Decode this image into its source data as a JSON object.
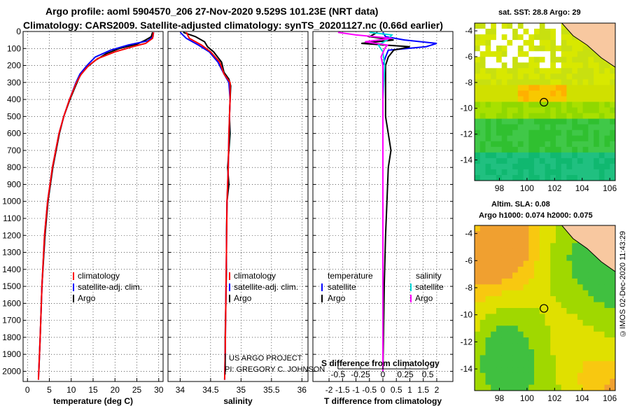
{
  "titles": {
    "line1": "Argo profile: aoml 5904570_206 27-Nov-2020 9.529S 101.23E (NRT data)",
    "line2": "Climatology: CARS2009. Satellite-adjusted climatology: synTS_20201127.nc (0.66d earlier)"
  },
  "maps": {
    "sst_title": "sat. SST: 28.8 Argo: 29",
    "sla_title1": "Altim. SLA: 0.08",
    "sla_title2": "Argo h1000: 0.074 h2000: 0.075",
    "yticks": [
      "-4",
      "-6",
      "-8",
      "-10",
      "-12",
      "-14"
    ],
    "xticks": [
      "98",
      "100",
      "102",
      "104",
      "106"
    ]
  },
  "credit": "©IMOS 02-Dec-2020 11:43:29",
  "project": {
    "line1": "US ARGO PROJECT",
    "line2": "PI: GREGORY C. JOHNSON"
  },
  "colors": {
    "climatology": "#ff0000",
    "satellite": "#0000ff",
    "argo": "#000000",
    "sat_salinity": "#00d8d8",
    "argo_salinity": "#ff00ff"
  },
  "chart_data": [
    {
      "type": "line",
      "xlabel": "temperature (deg C)",
      "xticks": [
        "0",
        "5",
        "10",
        "15",
        "20",
        "25",
        "30"
      ],
      "xlim": [
        -1,
        31
      ],
      "ylim": [
        0,
        2060
      ],
      "yticks": [
        "0",
        "100",
        "200",
        "300",
        "400",
        "500",
        "600",
        "700",
        "800",
        "900",
        "1000",
        "1100",
        "1200",
        "1300",
        "1400",
        "1500",
        "1600",
        "1700",
        "1800",
        "1900",
        "2000"
      ],
      "legend": [
        "climatology",
        "satellite-adj. clim.",
        "Argo"
      ],
      "series": [
        {
          "name": "climatology",
          "depth": [
            5,
            40,
            70,
            90,
            120,
            160,
            200,
            250,
            300,
            400,
            500,
            600,
            800,
            1000,
            1200,
            1500,
            1800,
            2050
          ],
          "values": [
            28.8,
            28.6,
            27,
            24,
            20,
            16,
            14,
            12.3,
            11.2,
            9.6,
            8.3,
            7.2,
            5.7,
            4.6,
            3.9,
            3.3,
            2.9,
            2.5
          ]
        },
        {
          "name": "satellite-adj. clim.",
          "depth": [
            5,
            30,
            55,
            80,
            110,
            150,
            200,
            250,
            300,
            400,
            500,
            600,
            800,
            1000,
            1200,
            1500,
            1800,
            2050
          ],
          "values": [
            28.8,
            28.7,
            27.5,
            23,
            19,
            15.5,
            13.6,
            12,
            11.1,
            9.6,
            8.3,
            7.2,
            5.7,
            4.6,
            3.9,
            3.3,
            2.9,
            2.5
          ]
        },
        {
          "name": "Argo",
          "depth": [
            5,
            30,
            50,
            75,
            100,
            130,
            170,
            210,
            260,
            320,
            400,
            500,
            600,
            800,
            1000,
            1200,
            1500,
            1800,
            2000
          ],
          "values": [
            28.6,
            28.3,
            27,
            25,
            21,
            18,
            15.5,
            13.6,
            12,
            11,
            9.7,
            8.3,
            7.3,
            5.8,
            4.7,
            4,
            3.3,
            2.9,
            2.6
          ]
        }
      ]
    },
    {
      "type": "line",
      "xlabel": "salinity",
      "xticks": [
        "34",
        "34.5",
        "35",
        "35.5",
        "36"
      ],
      "xlim": [
        33.8,
        36.1
      ],
      "ylim": [
        0,
        2060
      ],
      "legend": [
        "climatology",
        "satellite-adj. clim.",
        "Argo"
      ],
      "series": [
        {
          "name": "climatology",
          "depth": [
            5,
            40,
            80,
            120,
            180,
            250,
            300,
            400,
            600,
            800,
            1000,
            1300,
            1600,
            1900,
            2050
          ],
          "values": [
            34.1,
            34.15,
            34.35,
            34.5,
            34.65,
            34.72,
            34.82,
            34.82,
            34.8,
            34.79,
            34.77,
            34.76,
            34.75,
            34.74,
            34.73
          ]
        },
        {
          "name": "satellite-adj. clim.",
          "depth": [
            5,
            40,
            80,
            120,
            180,
            250,
            300,
            400,
            600,
            800,
            1000,
            1300,
            1600,
            1900,
            2050
          ],
          "values": [
            34.0,
            34.1,
            34.3,
            34.48,
            34.62,
            34.72,
            34.8,
            34.82,
            34.8,
            34.79,
            34.77,
            34.76,
            34.75,
            34.74,
            34.73
          ]
        },
        {
          "name": "Argo",
          "depth": [
            5,
            30,
            60,
            90,
            120,
            180,
            240,
            280,
            320,
            400,
            500,
            600,
            700,
            800,
            900,
            1000,
            1200,
            1400,
            1600,
            1800,
            2000
          ],
          "values": [
            34.05,
            34.25,
            34.4,
            34.45,
            34.55,
            34.68,
            34.72,
            34.8,
            34.83,
            34.82,
            34.81,
            34.82,
            34.8,
            34.78,
            34.8,
            34.77,
            34.76,
            34.76,
            34.75,
            34.74,
            34.74
          ]
        }
      ]
    },
    {
      "type": "line",
      "xlabel": "T difference from climatology",
      "xticks": [
        "-2",
        "-1.5",
        "-1",
        "-0.5",
        "0",
        "0.5",
        "1",
        "1.5",
        "2"
      ],
      "xlim": [
        -2.6,
        2.6
      ],
      "ylim": [
        0,
        2060
      ],
      "legend_title_t": "temperature",
      "legend_title_s": "salinity",
      "legend_t": [
        "satellite",
        "Argo"
      ],
      "legend_s": [
        "satellite",
        "Argo"
      ],
      "s_axis_label": "S difference from climatology",
      "s_xticks": [
        "-0.5",
        "-0.25",
        "0",
        "0.25",
        "0.5"
      ],
      "series": [
        {
          "name": "T satellite",
          "depth": [
            5,
            30,
            50,
            70,
            90,
            110,
            150,
            200,
            300,
            500,
            800,
            1200,
            1600,
            2000
          ],
          "values": [
            0,
            0.1,
            0.8,
            2.0,
            1.6,
            0.2,
            0.1,
            0,
            0,
            0,
            0,
            0,
            0,
            0
          ]
        },
        {
          "name": "T Argo",
          "depth": [
            5,
            30,
            50,
            70,
            90,
            110,
            150,
            200,
            300,
            500,
            700,
            800,
            1000,
            1200,
            1500,
            1800,
            2000
          ],
          "values": [
            -0.2,
            -0.5,
            0.4,
            -0.8,
            1.0,
            0.4,
            0.2,
            0.1,
            0.1,
            0.1,
            0.3,
            0.2,
            0.15,
            0.1,
            0.05,
            0.02,
            0
          ]
        },
        {
          "name": "S satellite",
          "depth": [
            5,
            20,
            50,
            80,
            120,
            200,
            400,
            800,
            1200,
            1600,
            2000
          ],
          "values": [
            -0.15,
            0.1,
            0.05,
            -0.05,
            0,
            0.02,
            0,
            0,
            0,
            0,
            0
          ]
        },
        {
          "name": "S Argo",
          "depth": [
            5,
            20,
            40,
            60,
            80,
            100,
            150,
            200,
            300,
            500,
            800,
            1200,
            1600,
            2000
          ],
          "values": [
            -0.5,
            -0.3,
            0.1,
            -0.2,
            0.05,
            0.02,
            -0.02,
            0,
            0,
            0,
            0,
            0,
            0,
            0
          ]
        }
      ]
    }
  ]
}
